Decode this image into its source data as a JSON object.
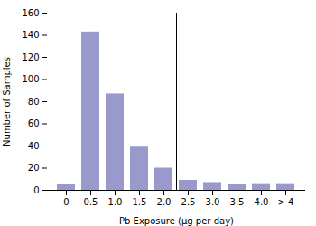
{
  "chart_data": {
    "type": "bar",
    "categories": [
      "0",
      "0.5",
      "1.0",
      "1.5",
      "2.0",
      "2.5",
      "3.0",
      "3.5",
      "4.0",
      "> 4"
    ],
    "values": [
      5,
      143,
      87,
      39,
      20,
      9,
      7,
      5,
      6,
      6
    ],
    "color": "#9999cc",
    "xlabel": "Pb Exposure (μg per day)",
    "ylabel": "Number of Samples",
    "ylim": [
      0,
      160
    ],
    "yticks": [
      0,
      20,
      40,
      60,
      80,
      100,
      120,
      140,
      160
    ],
    "grid": false
  }
}
